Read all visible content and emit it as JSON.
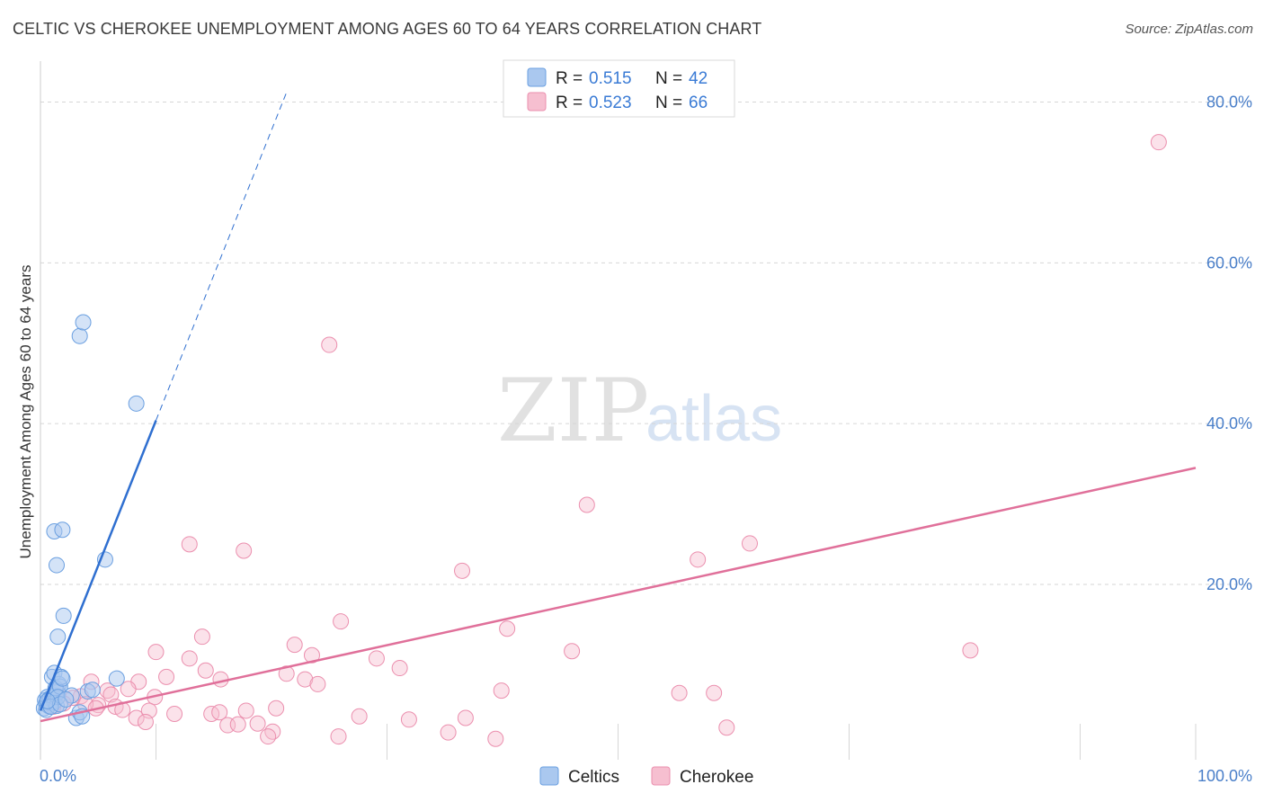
{
  "header": {
    "title": "CELTIC VS CHEROKEE UNEMPLOYMENT AMONG AGES 60 TO 64 YEARS CORRELATION CHART",
    "source": "Source: ZipAtlas.com"
  },
  "watermark": {
    "part1": "ZIP",
    "part2": "atlas"
  },
  "legend": {
    "celtics": {
      "r_label": "R =",
      "r_value": "0.515",
      "n_label": "N =",
      "n_value": "42"
    },
    "cherokee": {
      "r_label": "R =",
      "r_value": "0.523",
      "n_label": "N =",
      "n_value": "66"
    }
  },
  "bottom_legend": {
    "celtics": "Celtics",
    "cherokee": "Cherokee"
  },
  "colors": {
    "celtics_fill": "#aac8ef",
    "celtics_stroke": "#6a9fe0",
    "celtics_line": "#2f6fd0",
    "cherokee_fill": "#f6bfd0",
    "cherokee_stroke": "#eb8fae",
    "cherokee_line": "#e0709a",
    "tick_label": "#4a7fc9",
    "grid": "#d6d6d6"
  },
  "chart_data": {
    "type": "scatter",
    "title": "CELTIC VS CHEROKEE UNEMPLOYMENT AMONG AGES 60 TO 64 YEARS CORRELATION CHART",
    "xlabel": "",
    "ylabel": "Unemployment Among Ages 60 to 64 years",
    "xlim": [
      0,
      100
    ],
    "ylim": [
      -1.8,
      84.3
    ],
    "x_tick_labels": [
      "0.0%",
      "100.0%"
    ],
    "y_ticks": [
      20,
      40,
      60,
      80
    ],
    "y_tick_labels": [
      "20.0%",
      "40.0%",
      "60.0%",
      "80.0%"
    ],
    "grid": true,
    "series": [
      {
        "name": "Celtics",
        "R": 0.515,
        "N": 42,
        "trend": {
          "x0": 0,
          "y0": 4.3,
          "x1": 10,
          "y1": 40.4,
          "dashed_to_x": 21.3
        },
        "points": [
          [
            0.3,
            4.6
          ],
          [
            0.4,
            5.6
          ],
          [
            0.5,
            5.2
          ],
          [
            0.6,
            6.0
          ],
          [
            0.7,
            4.9
          ],
          [
            0.8,
            5.8
          ],
          [
            0.9,
            5.3
          ],
          [
            1.0,
            5.9
          ],
          [
            1.1,
            6.1
          ],
          [
            1.2,
            5.4
          ],
          [
            0.5,
            4.4
          ],
          [
            1.3,
            6.2
          ],
          [
            1.4,
            4.9
          ],
          [
            1.0,
            8.5
          ],
          [
            1.2,
            9.0
          ],
          [
            1.5,
            6.6
          ],
          [
            1.6,
            7.6
          ],
          [
            1.3,
            7.1
          ],
          [
            1.7,
            7.3
          ],
          [
            1.5,
            6.0
          ],
          [
            1.8,
            8.5
          ],
          [
            1.9,
            8.3
          ],
          [
            1.2,
            26.6
          ],
          [
            1.9,
            26.8
          ],
          [
            1.4,
            22.4
          ],
          [
            2.0,
            16.1
          ],
          [
            1.5,
            13.5
          ],
          [
            3.4,
            50.9
          ],
          [
            3.7,
            52.6
          ],
          [
            8.3,
            42.5
          ],
          [
            5.6,
            23.1
          ],
          [
            6.6,
            8.3
          ],
          [
            3.1,
            3.4
          ],
          [
            3.4,
            4.1
          ],
          [
            3.6,
            3.6
          ],
          [
            4.1,
            6.7
          ],
          [
            4.5,
            6.9
          ],
          [
            2.7,
            6.2
          ],
          [
            0.9,
            4.8
          ],
          [
            1.7,
            5.1
          ],
          [
            0.6,
            5.5
          ],
          [
            2.2,
            5.7
          ]
        ]
      },
      {
        "name": "Cherokee",
        "R": 0.523,
        "N": 66,
        "trend": {
          "x0": 0,
          "y0": 3.0,
          "x1": 100,
          "y1": 34.5
        },
        "points": [
          [
            96.8,
            75.0
          ],
          [
            25.0,
            49.8
          ],
          [
            47.3,
            29.9
          ],
          [
            56.9,
            23.1
          ],
          [
            12.9,
            25.0
          ],
          [
            17.6,
            24.2
          ],
          [
            36.5,
            21.7
          ],
          [
            61.4,
            25.1
          ],
          [
            26.0,
            15.4
          ],
          [
            40.4,
            14.5
          ],
          [
            14.0,
            13.5
          ],
          [
            22.0,
            12.5
          ],
          [
            10.0,
            11.6
          ],
          [
            23.5,
            11.2
          ],
          [
            29.1,
            10.8
          ],
          [
            46.0,
            11.7
          ],
          [
            80.5,
            11.8
          ],
          [
            12.9,
            10.8
          ],
          [
            14.3,
            9.3
          ],
          [
            31.1,
            9.6
          ],
          [
            10.9,
            8.5
          ],
          [
            15.6,
            8.2
          ],
          [
            21.3,
            8.9
          ],
          [
            22.9,
            8.2
          ],
          [
            24.0,
            7.6
          ],
          [
            8.5,
            7.9
          ],
          [
            7.6,
            7.0
          ],
          [
            5.8,
            6.8
          ],
          [
            3.5,
            6.1
          ],
          [
            2.8,
            5.9
          ],
          [
            4.4,
            7.9
          ],
          [
            6.1,
            6.3
          ],
          [
            9.9,
            6.0
          ],
          [
            5.0,
            5.0
          ],
          [
            6.5,
            4.8
          ],
          [
            7.1,
            4.4
          ],
          [
            8.3,
            3.4
          ],
          [
            9.4,
            4.3
          ],
          [
            11.6,
            3.9
          ],
          [
            14.8,
            3.9
          ],
          [
            15.5,
            4.1
          ],
          [
            17.8,
            4.3
          ],
          [
            20.4,
            4.6
          ],
          [
            16.2,
            2.5
          ],
          [
            17.1,
            2.6
          ],
          [
            18.8,
            2.7
          ],
          [
            20.1,
            1.7
          ],
          [
            19.7,
            1.1
          ],
          [
            25.8,
            1.1
          ],
          [
            27.6,
            3.6
          ],
          [
            31.9,
            3.2
          ],
          [
            35.3,
            1.6
          ],
          [
            36.8,
            3.4
          ],
          [
            39.4,
            0.8
          ],
          [
            39.9,
            6.8
          ],
          [
            55.3,
            6.5
          ],
          [
            58.3,
            6.5
          ],
          [
            59.4,
            2.2
          ],
          [
            9.1,
            2.9
          ],
          [
            2.0,
            5.2
          ],
          [
            1.5,
            6.1
          ],
          [
            0.8,
            5.4
          ],
          [
            1.1,
            4.8
          ],
          [
            3.9,
            5.1
          ],
          [
            4.8,
            4.6
          ],
          [
            1.4,
            7.0
          ]
        ]
      }
    ]
  }
}
